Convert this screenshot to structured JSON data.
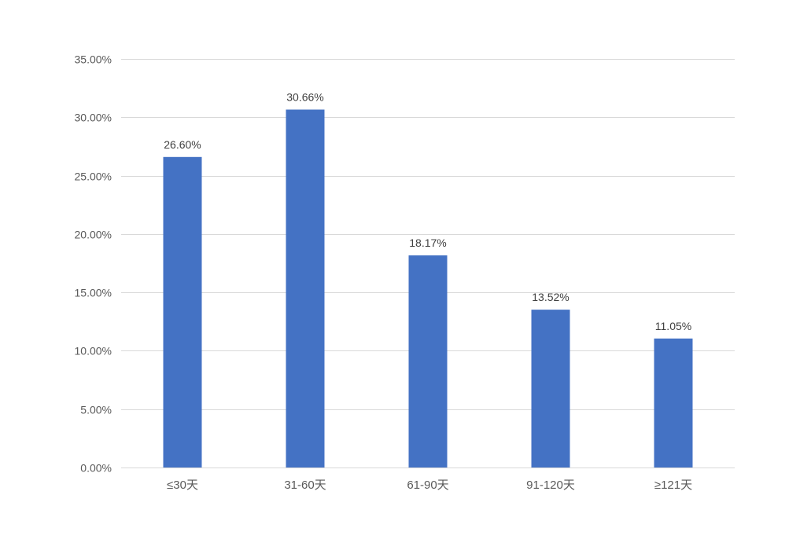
{
  "chart_data": {
    "type": "bar",
    "categories": [
      "≤30天",
      "31-60天",
      "61-90天",
      "91-120天",
      "≥121天"
    ],
    "values": [
      26.6,
      30.66,
      18.17,
      13.52,
      11.05
    ],
    "data_labels": [
      "26.60%",
      "30.66%",
      "18.17%",
      "13.52%",
      "11.05%"
    ],
    "yticks": [
      "0.00%",
      "5.00%",
      "10.00%",
      "15.00%",
      "20.00%",
      "25.00%",
      "30.00%",
      "35.00%"
    ],
    "ylim": [
      0,
      35
    ],
    "ystep": 5,
    "grid": true,
    "legend": "none",
    "colors": {
      "bar": "#4472C4",
      "grid": "#D9D9D9",
      "text": "#595959",
      "label": "#404040"
    }
  }
}
